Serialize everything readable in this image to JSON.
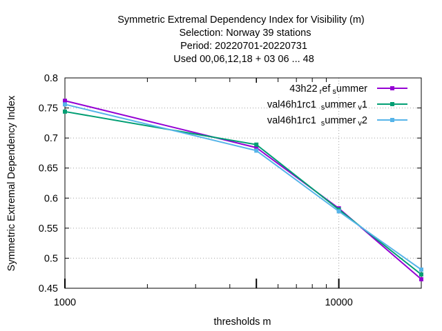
{
  "chart_data": {
    "type": "line",
    "title_lines": [
      "Symmetric Extremal Dependency Index  for Visibility (m)",
      "Selection: Norway      39 stations",
      "Period: 20220701-20220731",
      "Used  00,06,12,18  + 03 06 ... 48"
    ],
    "xlabel": "thresholds m",
    "ylabel": "Symmetric Extremal Dependency Index",
    "x_scale": "log",
    "xlim": [
      1000,
      20000
    ],
    "ylim": [
      0.45,
      0.8
    ],
    "x_tick_labels": [
      {
        "value": 1000,
        "label": "1000"
      },
      {
        "value": 10000,
        "label": "10000"
      }
    ],
    "y_ticks": [
      0.45,
      0.5,
      0.55,
      0.6,
      0.65,
      0.7,
      0.75,
      0.8
    ],
    "y_tick_labels": [
      "0.45",
      "0.5",
      "0.55",
      "0.6",
      "0.65",
      "0.7",
      "0.75",
      "0.8"
    ],
    "grid": true,
    "legend_position": "top-right",
    "x": [
      1000,
      5000,
      10000,
      20000
    ],
    "series": [
      {
        "name": "43h22 ref summer",
        "legend": {
          "main": "43h22",
          "sub1": "r",
          "mid": "ef",
          "sub2": "s",
          "tail": "ummer",
          "sub3": ""
        },
        "color": "#9400d3",
        "values": [
          0.762,
          0.684,
          0.583,
          0.465
        ]
      },
      {
        "name": "val46h1rc1 summer v1",
        "legend": {
          "main": "val46h1rc1 ",
          "sub1": "s",
          "mid": "ummer",
          "sub2": "v",
          "tail": "1",
          "sub3": ""
        },
        "color": "#009e73",
        "values": [
          0.744,
          0.689,
          0.581,
          0.473
        ]
      },
      {
        "name": "val46h1rc1 summer v2",
        "legend": {
          "main": "val46h1rc1 ",
          "sub1": "s",
          "mid": "ummer",
          "sub2": "v",
          "tail": "2",
          "sub3": ""
        },
        "color": "#56b4e9",
        "values": [
          0.756,
          0.679,
          0.578,
          0.481
        ]
      }
    ]
  }
}
